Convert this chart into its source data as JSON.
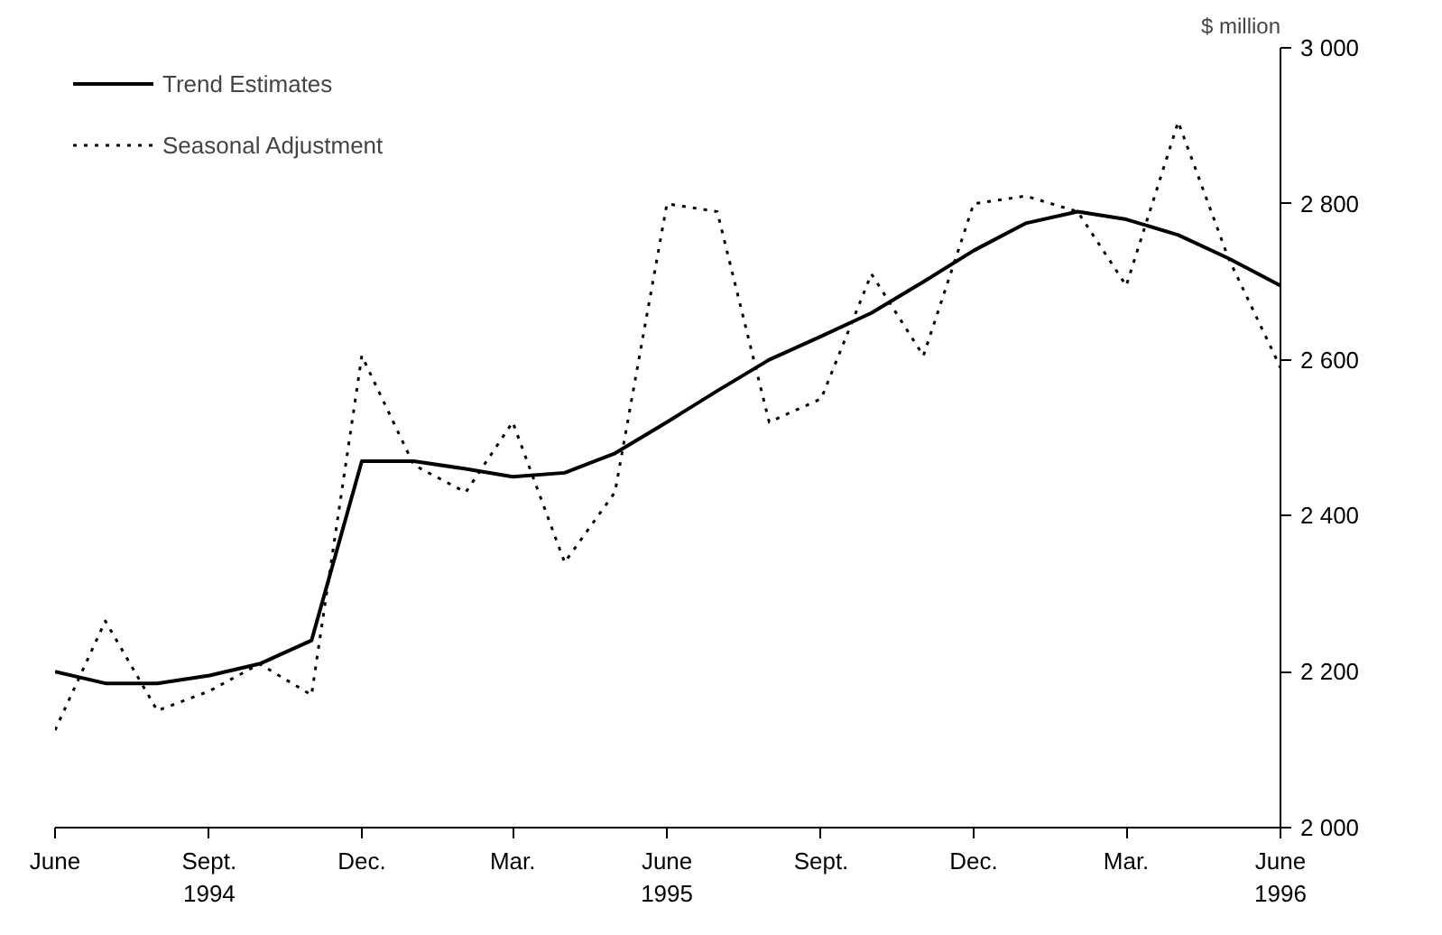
{
  "chart_data": {
    "type": "line",
    "ylabel": "$ million",
    "x": [
      "1994-06",
      "1994-07",
      "1994-08",
      "1994-09",
      "1994-10",
      "1994-11",
      "1994-12",
      "1995-01",
      "1995-02",
      "1995-03",
      "1995-04",
      "1995-05",
      "1995-06",
      "1995-07",
      "1995-08",
      "1995-09",
      "1995-10",
      "1995-11",
      "1995-12",
      "1996-01",
      "1996-02",
      "1996-03",
      "1996-04",
      "1996-05",
      "1996-06"
    ],
    "series": [
      {
        "name": "Trend Estimates",
        "color": "#000000",
        "line_style": "solid",
        "values": [
          2200,
          2185,
          2185,
          2195,
          2210,
          2240,
          2470,
          2470,
          2460,
          2450,
          2455,
          2480,
          2520,
          2560,
          2600,
          2630,
          2660,
          2700,
          2740,
          2775,
          2790,
          2780,
          2760,
          2730,
          2695
        ]
      },
      {
        "name": "Seasonal Adjustment",
        "color": "#000000",
        "line_style": "dotted",
        "values": [
          2125,
          2265,
          2150,
          2175,
          2210,
          2170,
          2605,
          2465,
          2430,
          2520,
          2340,
          2430,
          2800,
          2790,
          2520,
          2550,
          2710,
          2605,
          2800,
          2810,
          2790,
          2695,
          2905,
          2730,
          2590
        ]
      }
    ],
    "xlim": [
      "1994-06",
      "1996-06"
    ],
    "xticks": [
      {
        "value": "1994-06",
        "label": "June"
      },
      {
        "value": "1994-09",
        "label": "Sept.\n1994"
      },
      {
        "value": "1994-12",
        "label": "Dec."
      },
      {
        "value": "1995-03",
        "label": "Mar."
      },
      {
        "value": "1995-06",
        "label": "June\n1995"
      },
      {
        "value": "1995-09",
        "label": "Sept."
      },
      {
        "value": "1995-12",
        "label": "Dec."
      },
      {
        "value": "1996-03",
        "label": "Mar."
      },
      {
        "value": "1996-06",
        "label": "June\n1996"
      }
    ],
    "ylim": [
      2000,
      3000
    ],
    "yticks": [
      {
        "value": 2000,
        "label": "2 000"
      },
      {
        "value": 2200,
        "label": "2 200"
      },
      {
        "value": 2400,
        "label": "2 400"
      },
      {
        "value": 2600,
        "label": "2 600"
      },
      {
        "value": 2800,
        "label": "2 800"
      },
      {
        "value": 3000,
        "label": "3 000"
      }
    ],
    "grid": false,
    "legend": "top left"
  }
}
